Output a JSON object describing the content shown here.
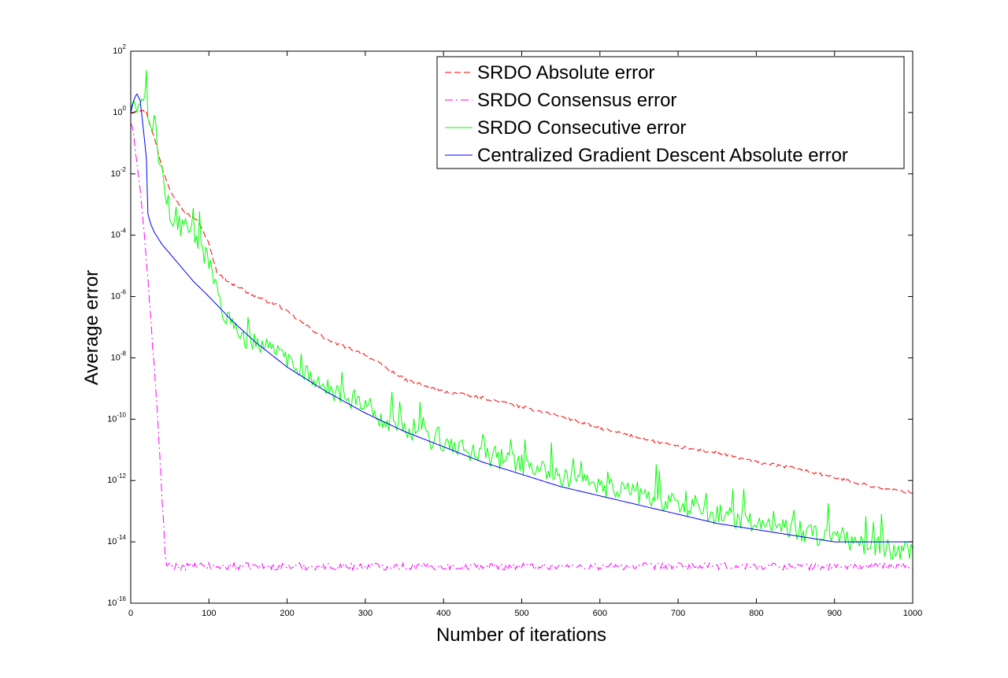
{
  "chart_data": {
    "type": "line",
    "title": "",
    "xlabel": "Number of iterations",
    "ylabel": "Average error",
    "xlim": [
      0,
      1000
    ],
    "ylim_log10": [
      -16,
      2
    ],
    "y_scale": "log",
    "x_ticks": [
      0,
      100,
      200,
      300,
      400,
      500,
      600,
      700,
      800,
      900,
      1000
    ],
    "y_tick_base": "10",
    "y_tick_exponents": [
      "2",
      "0",
      "-2",
      "-4",
      "-6",
      "-8",
      "-10",
      "-12",
      "-14",
      "-16"
    ],
    "grid": false,
    "legend_position": "top-right",
    "series": [
      {
        "name": "SRDO Absolute error",
        "color": "#ff0000",
        "style": "dashed",
        "noise": 0.05,
        "x": [
          0,
          10,
          20,
          30,
          40,
          50,
          60,
          70,
          80,
          90,
          100,
          110,
          120,
          130,
          140,
          150,
          160,
          170,
          180,
          190,
          200,
          250,
          300,
          350,
          400,
          450,
          500,
          550,
          600,
          650,
          700,
          750,
          800,
          850,
          900,
          950,
          1000
        ],
        "y_log10": [
          0.0,
          0.1,
          0.0,
          -0.8,
          -1.8,
          -2.5,
          -2.9,
          -3.3,
          -3.4,
          -3.7,
          -4.3,
          -5.2,
          -5.4,
          -5.6,
          -5.7,
          -5.9,
          -6.0,
          -6.1,
          -6.2,
          -6.3,
          -6.5,
          -7.4,
          -7.9,
          -8.7,
          -9.1,
          -9.3,
          -9.6,
          -9.9,
          -10.3,
          -10.6,
          -10.9,
          -11.1,
          -11.4,
          -11.6,
          -11.9,
          -12.2,
          -12.4
        ]
      },
      {
        "name": "SRDO Consensus error",
        "color": "#ff00ff",
        "style": "dashdot",
        "noise": 0.12,
        "x": [
          0,
          5,
          10,
          15,
          20,
          25,
          30,
          35,
          40,
          45,
          50,
          100,
          200,
          300,
          400,
          500,
          600,
          700,
          800,
          900,
          1000
        ],
        "y_log10": [
          -0.3,
          -1.0,
          -2.0,
          -3.3,
          -4.8,
          -6.5,
          -8.3,
          -10.2,
          -12.5,
          -14.8,
          -14.8,
          -14.8,
          -14.8,
          -14.8,
          -14.8,
          -14.8,
          -14.8,
          -14.8,
          -14.8,
          -14.8,
          -14.8
        ]
      },
      {
        "name": "SRDO Consecutive error",
        "color": "#00ff00",
        "style": "solid",
        "noise": 0.35,
        "x": [
          0,
          10,
          20,
          30,
          40,
          50,
          60,
          70,
          80,
          90,
          100,
          110,
          120,
          130,
          140,
          150,
          200,
          250,
          300,
          350,
          400,
          450,
          500,
          550,
          600,
          650,
          700,
          750,
          800,
          850,
          900,
          950,
          1000
        ],
        "y_log10": [
          0.2,
          0.2,
          0.2,
          -0.6,
          -2.0,
          -3.3,
          -3.6,
          -3.8,
          -4.0,
          -4.4,
          -4.9,
          -5.8,
          -6.6,
          -7.0,
          -7.3,
          -7.4,
          -8.0,
          -9.0,
          -9.7,
          -10.3,
          -10.8,
          -11.2,
          -11.5,
          -11.9,
          -12.2,
          -12.5,
          -12.8,
          -13.1,
          -13.4,
          -13.6,
          -13.9,
          -14.1,
          -14.4
        ]
      },
      {
        "name": "Centralized Gradient Descent Absolute error",
        "color": "#0000ff",
        "style": "solid",
        "noise": 0,
        "x": [
          0,
          5,
          8,
          12,
          16,
          20,
          22,
          25,
          30,
          40,
          50,
          60,
          80,
          100,
          130,
          160,
          200,
          250,
          300,
          350,
          400,
          450,
          500,
          550,
          600,
          650,
          700,
          750,
          800,
          850,
          900,
          950,
          1000
        ],
        "y_log10": [
          0.0,
          0.5,
          0.6,
          0.4,
          -0.5,
          -1.5,
          -3.3,
          -3.6,
          -3.9,
          -4.3,
          -4.6,
          -4.9,
          -5.5,
          -6.0,
          -6.8,
          -7.5,
          -8.3,
          -9.1,
          -9.8,
          -10.4,
          -10.9,
          -11.4,
          -11.8,
          -12.2,
          -12.5,
          -12.8,
          -13.1,
          -13.4,
          -13.6,
          -13.8,
          -14.0,
          -14.0,
          -14.0
        ]
      }
    ]
  }
}
